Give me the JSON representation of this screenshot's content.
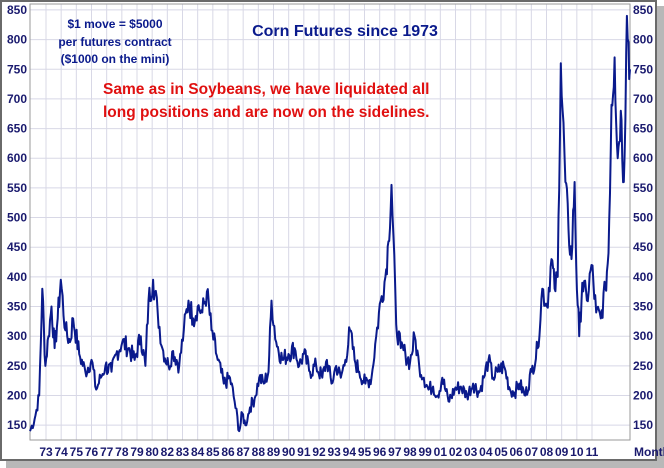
{
  "chart_data": {
    "type": "line",
    "title": "Corn Futures since 1973",
    "frequency_label": "Monthly",
    "annotations": {
      "contract_note": [
        "$1 move = $5000",
        "per futures contract",
        "($1000 on the mini)"
      ],
      "commentary": [
        "Same as in Soybeans, we have liquidated all",
        "long positions and are now on the sidelines."
      ]
    },
    "ylim": [
      125,
      860
    ],
    "y_ticks": [
      150,
      200,
      250,
      300,
      350,
      400,
      450,
      500,
      550,
      600,
      650,
      700,
      750,
      800,
      850
    ],
    "x_tick_labels": [
      "73",
      "74",
      "75",
      "76",
      "77",
      "78",
      "79",
      "80",
      "82",
      "83",
      "84",
      "85",
      "86",
      "87",
      "88",
      "89",
      "90",
      "91",
      "92",
      "93",
      "94",
      "95",
      "96",
      "97",
      "98",
      "99",
      "01",
      "02",
      "03",
      "04",
      "05",
      "06",
      "07",
      "08",
      "09",
      "10",
      "11"
    ],
    "grid": true,
    "colors": {
      "line": "#0a1a8c",
      "title": "#0a1a8c",
      "commentary": "#e01010",
      "axis_text": "#1a1a6e",
      "grid": "#d8d8e6",
      "frame": "#555555"
    },
    "series": [
      {
        "x": [
          1973.0,
          1973.3,
          1973.6,
          1973.8,
          1974.0,
          1974.2,
          1974.4,
          1974.6,
          1974.8,
          1975.0,
          1975.3,
          1975.6,
          1975.8,
          1976.2,
          1976.6,
          1977.0,
          1977.3,
          1977.6,
          1977.9,
          1978.3,
          1978.6,
          1979.0,
          1979.4,
          1979.8,
          1980.2,
          1980.5,
          1980.7,
          1981.0,
          1981.3,
          1981.6,
          1982.0,
          1982.3,
          1982.7,
          1983.0,
          1983.3,
          1983.6,
          1983.9,
          1984.2,
          1984.5,
          1984.8,
          1985.2,
          1985.6,
          1986.0,
          1986.3,
          1986.6,
          1986.8,
          1987.0,
          1987.3,
          1987.6,
          1987.9,
          1988.2,
          1988.5,
          1988.7,
          1989.0,
          1989.4,
          1989.8,
          1990.2,
          1990.5,
          1990.8,
          1991.2,
          1991.6,
          1992.0,
          1992.3,
          1992.6,
          1992.9,
          1993.2,
          1993.5,
          1993.8,
          1994.1,
          1994.4,
          1994.8,
          1995.2,
          1995.5,
          1995.8,
          1996.1,
          1996.3,
          1996.5,
          1996.8,
          1997.1,
          1997.4,
          1997.7,
          1998.0,
          1998.3,
          1998.6,
          1998.9,
          1999.2,
          1999.5,
          1999.8,
          2000.2,
          2000.6,
          2001.0,
          2001.4,
          2001.8,
          2002.2,
          2002.5,
          2002.8,
          2003.1,
          2003.4,
          2003.8,
          2004.2,
          2004.5,
          2004.8,
          2005.2,
          2005.6,
          2006.0,
          2006.3,
          2006.6,
          2006.9,
          2007.1,
          2007.3,
          2007.5,
          2007.8,
          2008.0,
          2008.2,
          2008.4,
          2008.5,
          2008.7,
          2008.9,
          2009.2,
          2009.5,
          2009.8,
          2010.1,
          2010.4,
          2010.6,
          2010.8,
          2011.0,
          2011.2,
          2011.4,
          2011.6,
          2011.8,
          2012.0
        ],
        "y": [
          140,
          160,
          200,
          380,
          250,
          300,
          350,
          280,
          330,
          395,
          310,
          290,
          330,
          270,
          240,
          260,
          210,
          230,
          250,
          240,
          270,
          290,
          280,
          260,
          300,
          250,
          360,
          395,
          340,
          280,
          250,
          275,
          250,
          310,
          360,
          330,
          350,
          340,
          375,
          310,
          260,
          220,
          230,
          190,
          140,
          170,
          150,
          180,
          195,
          230,
          220,
          240,
          360,
          290,
          260,
          270,
          280,
          250,
          270,
          240,
          250,
          230,
          260,
          220,
          250,
          230,
          260,
          310,
          260,
          240,
          220,
          230,
          300,
          360,
          400,
          460,
          555,
          320,
          280,
          270,
          255,
          300,
          250,
          230,
          210,
          215,
          200,
          230,
          190,
          210,
          215,
          200,
          220,
          205,
          230,
          260,
          230,
          240,
          250,
          210,
          205,
          220,
          200,
          240,
          280,
          380,
          350,
          430,
          380,
          400,
          760,
          560,
          480,
          430,
          560,
          420,
          300,
          390,
          360,
          420,
          340,
          330,
          380,
          440,
          690,
          770,
          600,
          680,
          560,
          840,
          750
        ]
      }
    ]
  }
}
